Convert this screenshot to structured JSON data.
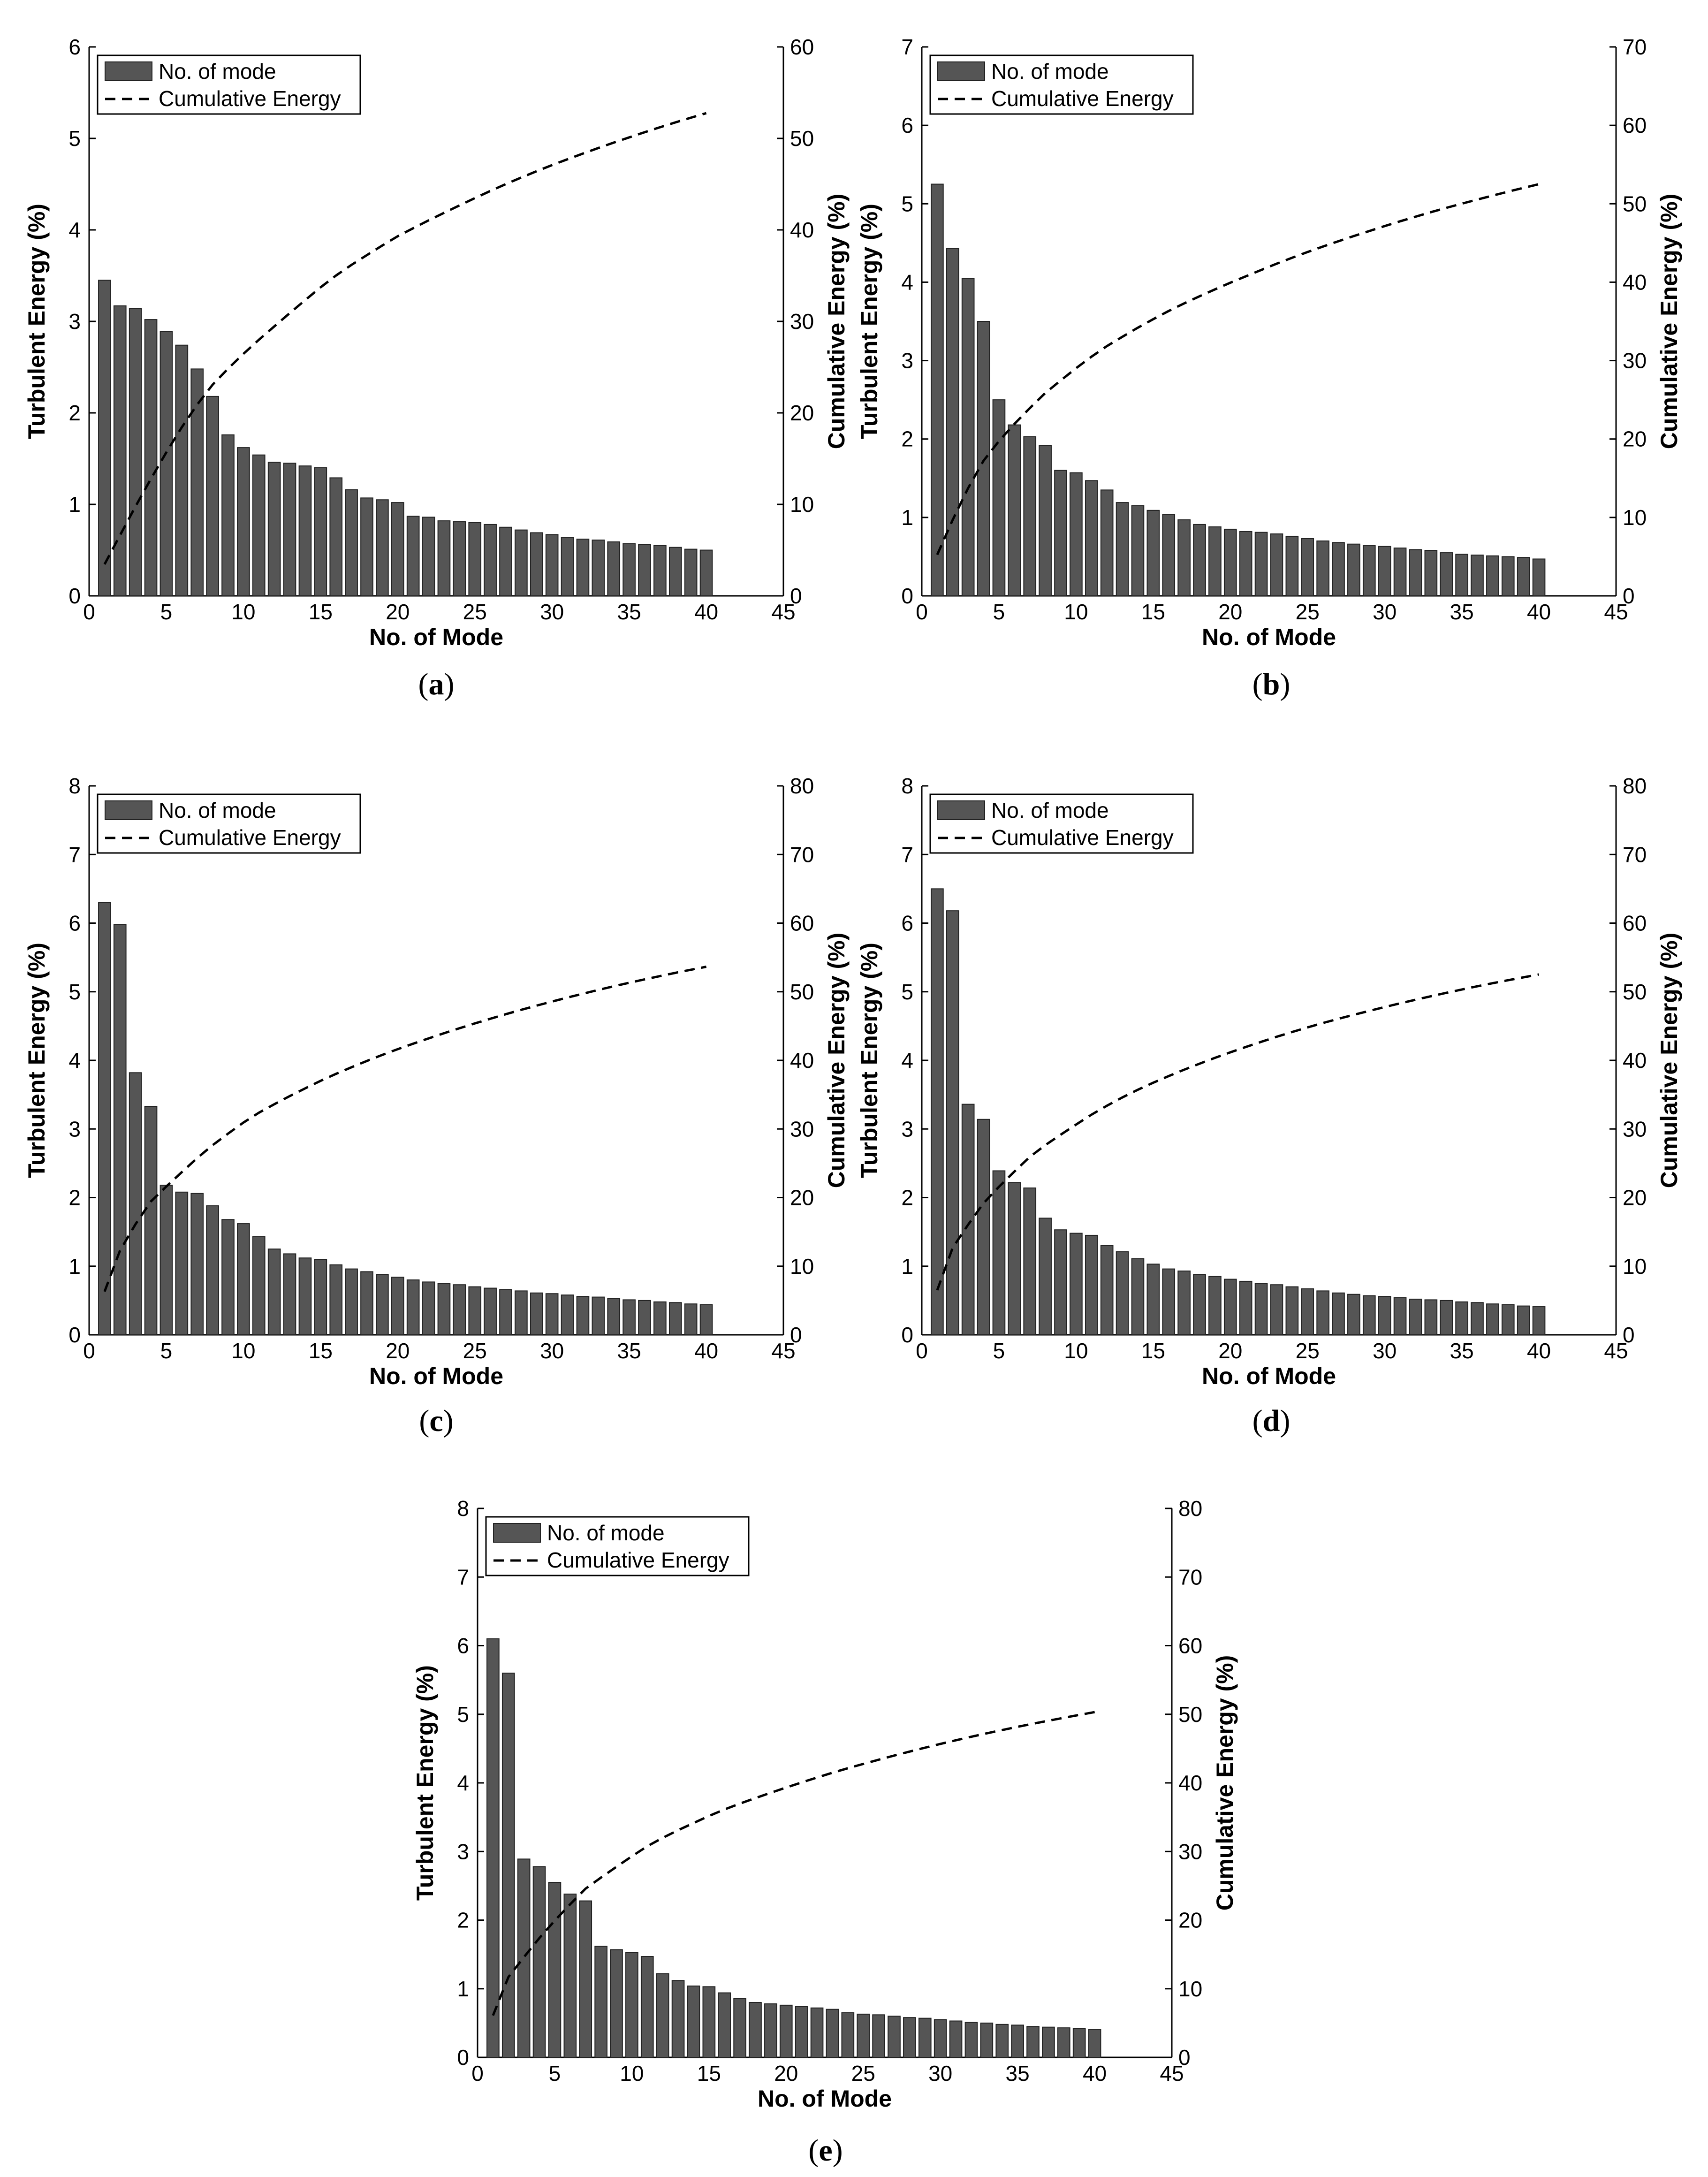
{
  "colors": {
    "bar": "#555555",
    "bar_edge": "#222222",
    "axis": "#000000",
    "line": "#000000"
  },
  "chart_data": [
    {
      "panel": "a",
      "caption_letter": "a",
      "type": "bar",
      "xlabel": "No. of Mode",
      "ylabel": "Turbulent Energy (%)",
      "y2label": "Cumulative Energy (%)",
      "xlim": [
        0,
        45
      ],
      "ylim": [
        0,
        6
      ],
      "y2lim": [
        0,
        60
      ],
      "xticks": [
        0,
        5,
        10,
        15,
        20,
        25,
        30,
        35,
        40,
        45
      ],
      "yticks": [
        0,
        1,
        2,
        3,
        4,
        5,
        6
      ],
      "y2ticks": [
        0,
        10,
        20,
        30,
        40,
        50,
        60
      ],
      "legend": [
        "No. of mode",
        "Cumulative Energy"
      ],
      "legend_position": "top-left",
      "x": [
        1,
        2,
        3,
        4,
        5,
        6,
        7,
        8,
        9,
        10,
        11,
        12,
        13,
        14,
        15,
        16,
        17,
        18,
        19,
        20,
        21,
        22,
        23,
        24,
        25,
        26,
        27,
        28,
        29,
        30,
        31,
        32,
        33,
        34,
        35,
        36,
        37,
        38,
        39,
        40
      ],
      "series": [
        {
          "name": "No. of mode",
          "type": "bar",
          "values": [
            3.45,
            3.17,
            3.14,
            3.02,
            2.89,
            2.74,
            2.48,
            2.18,
            1.76,
            1.62,
            1.54,
            1.46,
            1.45,
            1.42,
            1.4,
            1.29,
            1.16,
            1.07,
            1.05,
            1.02,
            0.87,
            0.86,
            0.82,
            0.81,
            0.8,
            0.78,
            0.75,
            0.72,
            0.69,
            0.67,
            0.64,
            0.62,
            0.61,
            0.59,
            0.57,
            0.56,
            0.55,
            0.53,
            0.51,
            0.5
          ]
        },
        {
          "name": "Cumulative Energy",
          "type": "line",
          "axis": "right",
          "values": [
            3.45,
            6.62,
            9.76,
            12.78,
            15.67,
            18.41,
            20.89,
            23.07,
            24.83,
            26.45,
            27.99,
            29.45,
            30.9,
            32.32,
            33.72,
            35.01,
            36.17,
            37.24,
            38.29,
            39.31,
            40.18,
            41.04,
            41.86,
            42.67,
            43.47,
            44.25,
            45.0,
            45.72,
            46.41,
            47.08,
            47.72,
            48.34,
            48.95,
            49.54,
            50.11,
            50.67,
            51.22,
            51.75,
            52.26,
            52.76
          ]
        }
      ]
    },
    {
      "panel": "b",
      "caption_letter": "b",
      "type": "bar",
      "xlabel": "No. of Mode",
      "ylabel": "Turbulent Energy (%)",
      "y2label": "Cumulative Energy (%)",
      "xlim": [
        0,
        45
      ],
      "ylim": [
        0,
        7
      ],
      "y2lim": [
        0,
        70
      ],
      "xticks": [
        0,
        5,
        10,
        15,
        20,
        25,
        30,
        35,
        40,
        45
      ],
      "yticks": [
        0,
        1,
        2,
        3,
        4,
        5,
        6,
        7
      ],
      "y2ticks": [
        0,
        10,
        20,
        30,
        40,
        50,
        60,
        70
      ],
      "legend": [
        "No. of mode",
        "Cumulative Energy"
      ],
      "legend_position": "top-left",
      "x": [
        1,
        2,
        3,
        4,
        5,
        6,
        7,
        8,
        9,
        10,
        11,
        12,
        13,
        14,
        15,
        16,
        17,
        18,
        19,
        20,
        21,
        22,
        23,
        24,
        25,
        26,
        27,
        28,
        29,
        30,
        31,
        32,
        33,
        34,
        35,
        36,
        37,
        38,
        39,
        40
      ],
      "series": [
        {
          "name": "No. of mode",
          "type": "bar",
          "values": [
            5.25,
            4.43,
            4.05,
            3.5,
            2.5,
            2.18,
            2.03,
            1.92,
            1.6,
            1.57,
            1.47,
            1.35,
            1.19,
            1.15,
            1.09,
            1.04,
            0.97,
            0.91,
            0.88,
            0.85,
            0.82,
            0.81,
            0.79,
            0.76,
            0.73,
            0.7,
            0.68,
            0.66,
            0.64,
            0.63,
            0.61,
            0.59,
            0.58,
            0.55,
            0.53,
            0.52,
            0.51,
            0.5,
            0.49,
            0.47
          ]
        },
        {
          "name": "Cumulative Energy",
          "type": "line",
          "axis": "right",
          "values": [
            5.25,
            9.68,
            13.73,
            17.23,
            19.73,
            21.91,
            23.94,
            25.86,
            27.46,
            29.03,
            30.5,
            31.85,
            33.04,
            34.19,
            35.28,
            36.32,
            37.29,
            38.2,
            39.08,
            39.93,
            40.75,
            41.56,
            42.35,
            43.11,
            43.84,
            44.54,
            45.22,
            45.88,
            46.52,
            47.15,
            47.76,
            48.35,
            48.93,
            49.48,
            50.01,
            50.53,
            51.04,
            51.54,
            52.03,
            52.5
          ]
        }
      ]
    },
    {
      "panel": "c",
      "caption_letter": "c",
      "type": "bar",
      "xlabel": "No. of Mode",
      "ylabel": "Turbulent Energy (%)",
      "y2label": "Cumulative Energy (%)",
      "xlim": [
        0,
        45
      ],
      "ylim": [
        0,
        8
      ],
      "y2lim": [
        0,
        80
      ],
      "xticks": [
        0,
        5,
        10,
        15,
        20,
        25,
        30,
        35,
        40,
        45
      ],
      "yticks": [
        0,
        1,
        2,
        3,
        4,
        5,
        6,
        7,
        8
      ],
      "y2ticks": [
        0,
        10,
        20,
        30,
        40,
        50,
        60,
        70,
        80
      ],
      "legend": [
        "No. of mode",
        "Cumulative Energy"
      ],
      "legend_position": "top-left",
      "x": [
        1,
        2,
        3,
        4,
        5,
        6,
        7,
        8,
        9,
        10,
        11,
        12,
        13,
        14,
        15,
        16,
        17,
        18,
        19,
        20,
        21,
        22,
        23,
        24,
        25,
        26,
        27,
        28,
        29,
        30,
        31,
        32,
        33,
        34,
        35,
        36,
        37,
        38,
        39,
        40
      ],
      "series": [
        {
          "name": "No. of mode",
          "type": "bar",
          "values": [
            6.3,
            5.98,
            3.82,
            3.33,
            2.18,
            2.08,
            2.06,
            1.88,
            1.68,
            1.62,
            1.43,
            1.25,
            1.18,
            1.12,
            1.1,
            1.02,
            0.96,
            0.92,
            0.88,
            0.84,
            0.8,
            0.77,
            0.75,
            0.73,
            0.7,
            0.68,
            0.66,
            0.64,
            0.61,
            0.6,
            0.58,
            0.56,
            0.55,
            0.53,
            0.51,
            0.5,
            0.48,
            0.47,
            0.45,
            0.44
          ]
        },
        {
          "name": "Cumulative Energy",
          "type": "line",
          "axis": "right",
          "values": [
            6.3,
            12.28,
            16.1,
            19.43,
            21.61,
            23.69,
            25.75,
            27.63,
            29.31,
            30.93,
            32.36,
            33.61,
            34.79,
            35.91,
            37.01,
            38.03,
            38.99,
            39.91,
            40.79,
            41.63,
            42.43,
            43.2,
            43.95,
            44.68,
            45.38,
            46.06,
            46.72,
            47.36,
            47.97,
            48.57,
            49.15,
            49.71,
            50.26,
            50.79,
            51.3,
            51.8,
            52.28,
            52.75,
            53.2,
            53.64
          ]
        }
      ]
    },
    {
      "panel": "d",
      "caption_letter": "d",
      "type": "bar",
      "xlabel": "No. of Mode",
      "ylabel": "Turbulent Energy (%)",
      "y2label": "Cumulative Energy (%)",
      "xlim": [
        0,
        45
      ],
      "ylim": [
        0,
        8
      ],
      "y2lim": [
        0,
        80
      ],
      "xticks": [
        0,
        5,
        10,
        15,
        20,
        25,
        30,
        35,
        40,
        45
      ],
      "yticks": [
        0,
        1,
        2,
        3,
        4,
        5,
        6,
        7,
        8
      ],
      "y2ticks": [
        0,
        10,
        20,
        30,
        40,
        50,
        60,
        70,
        80
      ],
      "legend": [
        "No. of mode",
        "Cumulative Energy"
      ],
      "legend_position": "top-left",
      "x": [
        1,
        2,
        3,
        4,
        5,
        6,
        7,
        8,
        9,
        10,
        11,
        12,
        13,
        14,
        15,
        16,
        17,
        18,
        19,
        20,
        21,
        22,
        23,
        24,
        25,
        26,
        27,
        28,
        29,
        30,
        31,
        32,
        33,
        34,
        35,
        36,
        37,
        38,
        39,
        40
      ],
      "series": [
        {
          "name": "No. of mode",
          "type": "bar",
          "values": [
            6.5,
            6.18,
            3.36,
            3.14,
            2.39,
            2.22,
            2.14,
            1.7,
            1.53,
            1.48,
            1.45,
            1.3,
            1.21,
            1.11,
            1.03,
            0.96,
            0.93,
            0.88,
            0.85,
            0.81,
            0.78,
            0.75,
            0.73,
            0.7,
            0.67,
            0.64,
            0.61,
            0.59,
            0.57,
            0.56,
            0.54,
            0.52,
            0.51,
            0.5,
            0.48,
            0.47,
            0.45,
            0.44,
            0.42,
            0.41
          ]
        },
        {
          "name": "Cumulative Energy",
          "type": "line",
          "axis": "right",
          "values": [
            6.5,
            12.68,
            16.04,
            19.18,
            21.57,
            23.79,
            25.93,
            27.63,
            29.16,
            30.64,
            32.09,
            33.39,
            34.6,
            35.71,
            36.74,
            37.7,
            38.63,
            39.51,
            40.36,
            41.17,
            41.95,
            42.7,
            43.43,
            44.13,
            44.8,
            45.44,
            46.05,
            46.64,
            47.21,
            47.77,
            48.31,
            48.83,
            49.34,
            49.84,
            50.32,
            50.79,
            51.24,
            51.68,
            52.1,
            52.51
          ]
        }
      ]
    },
    {
      "panel": "e",
      "caption_letter": "e",
      "type": "bar",
      "xlabel": "No. of Mode",
      "ylabel": "Turbulent Energy (%)",
      "y2label": "Cumulative Energy (%)",
      "xlim": [
        0,
        45
      ],
      "ylim": [
        0,
        8
      ],
      "y2lim": [
        0,
        80
      ],
      "xticks": [
        0,
        5,
        10,
        15,
        20,
        25,
        30,
        35,
        40,
        45
      ],
      "yticks": [
        0,
        1,
        2,
        3,
        4,
        5,
        6,
        7,
        8
      ],
      "y2ticks": [
        0,
        10,
        20,
        30,
        40,
        50,
        60,
        70,
        80
      ],
      "legend": [
        "No. of mode",
        "Cumulative Energy"
      ],
      "legend_position": "top-left",
      "x": [
        1,
        2,
        3,
        4,
        5,
        6,
        7,
        8,
        9,
        10,
        11,
        12,
        13,
        14,
        15,
        16,
        17,
        18,
        19,
        20,
        21,
        22,
        23,
        24,
        25,
        26,
        27,
        28,
        29,
        30,
        31,
        32,
        33,
        34,
        35,
        36,
        37,
        38,
        39,
        40
      ],
      "series": [
        {
          "name": "No. of mode",
          "type": "bar",
          "values": [
            6.1,
            5.6,
            2.89,
            2.78,
            2.55,
            2.38,
            2.28,
            1.62,
            1.57,
            1.53,
            1.47,
            1.22,
            1.12,
            1.04,
            1.03,
            0.94,
            0.86,
            0.8,
            0.78,
            0.76,
            0.74,
            0.72,
            0.7,
            0.65,
            0.63,
            0.62,
            0.6,
            0.58,
            0.57,
            0.55,
            0.53,
            0.51,
            0.5,
            0.48,
            0.47,
            0.45,
            0.44,
            0.43,
            0.42,
            0.41
          ]
        },
        {
          "name": "Cumulative Energy",
          "type": "line",
          "axis": "right",
          "values": [
            6.1,
            11.7,
            14.59,
            17.37,
            19.92,
            22.3,
            24.58,
            26.2,
            27.77,
            29.3,
            30.77,
            31.99,
            33.11,
            34.15,
            35.18,
            36.12,
            36.98,
            37.78,
            38.56,
            39.32,
            40.06,
            40.78,
            41.48,
            42.13,
            42.76,
            43.38,
            43.98,
            44.56,
            45.13,
            45.68,
            46.21,
            46.72,
            47.22,
            47.7,
            48.17,
            48.62,
            49.06,
            49.49,
            49.91,
            50.32
          ]
        }
      ]
    }
  ]
}
